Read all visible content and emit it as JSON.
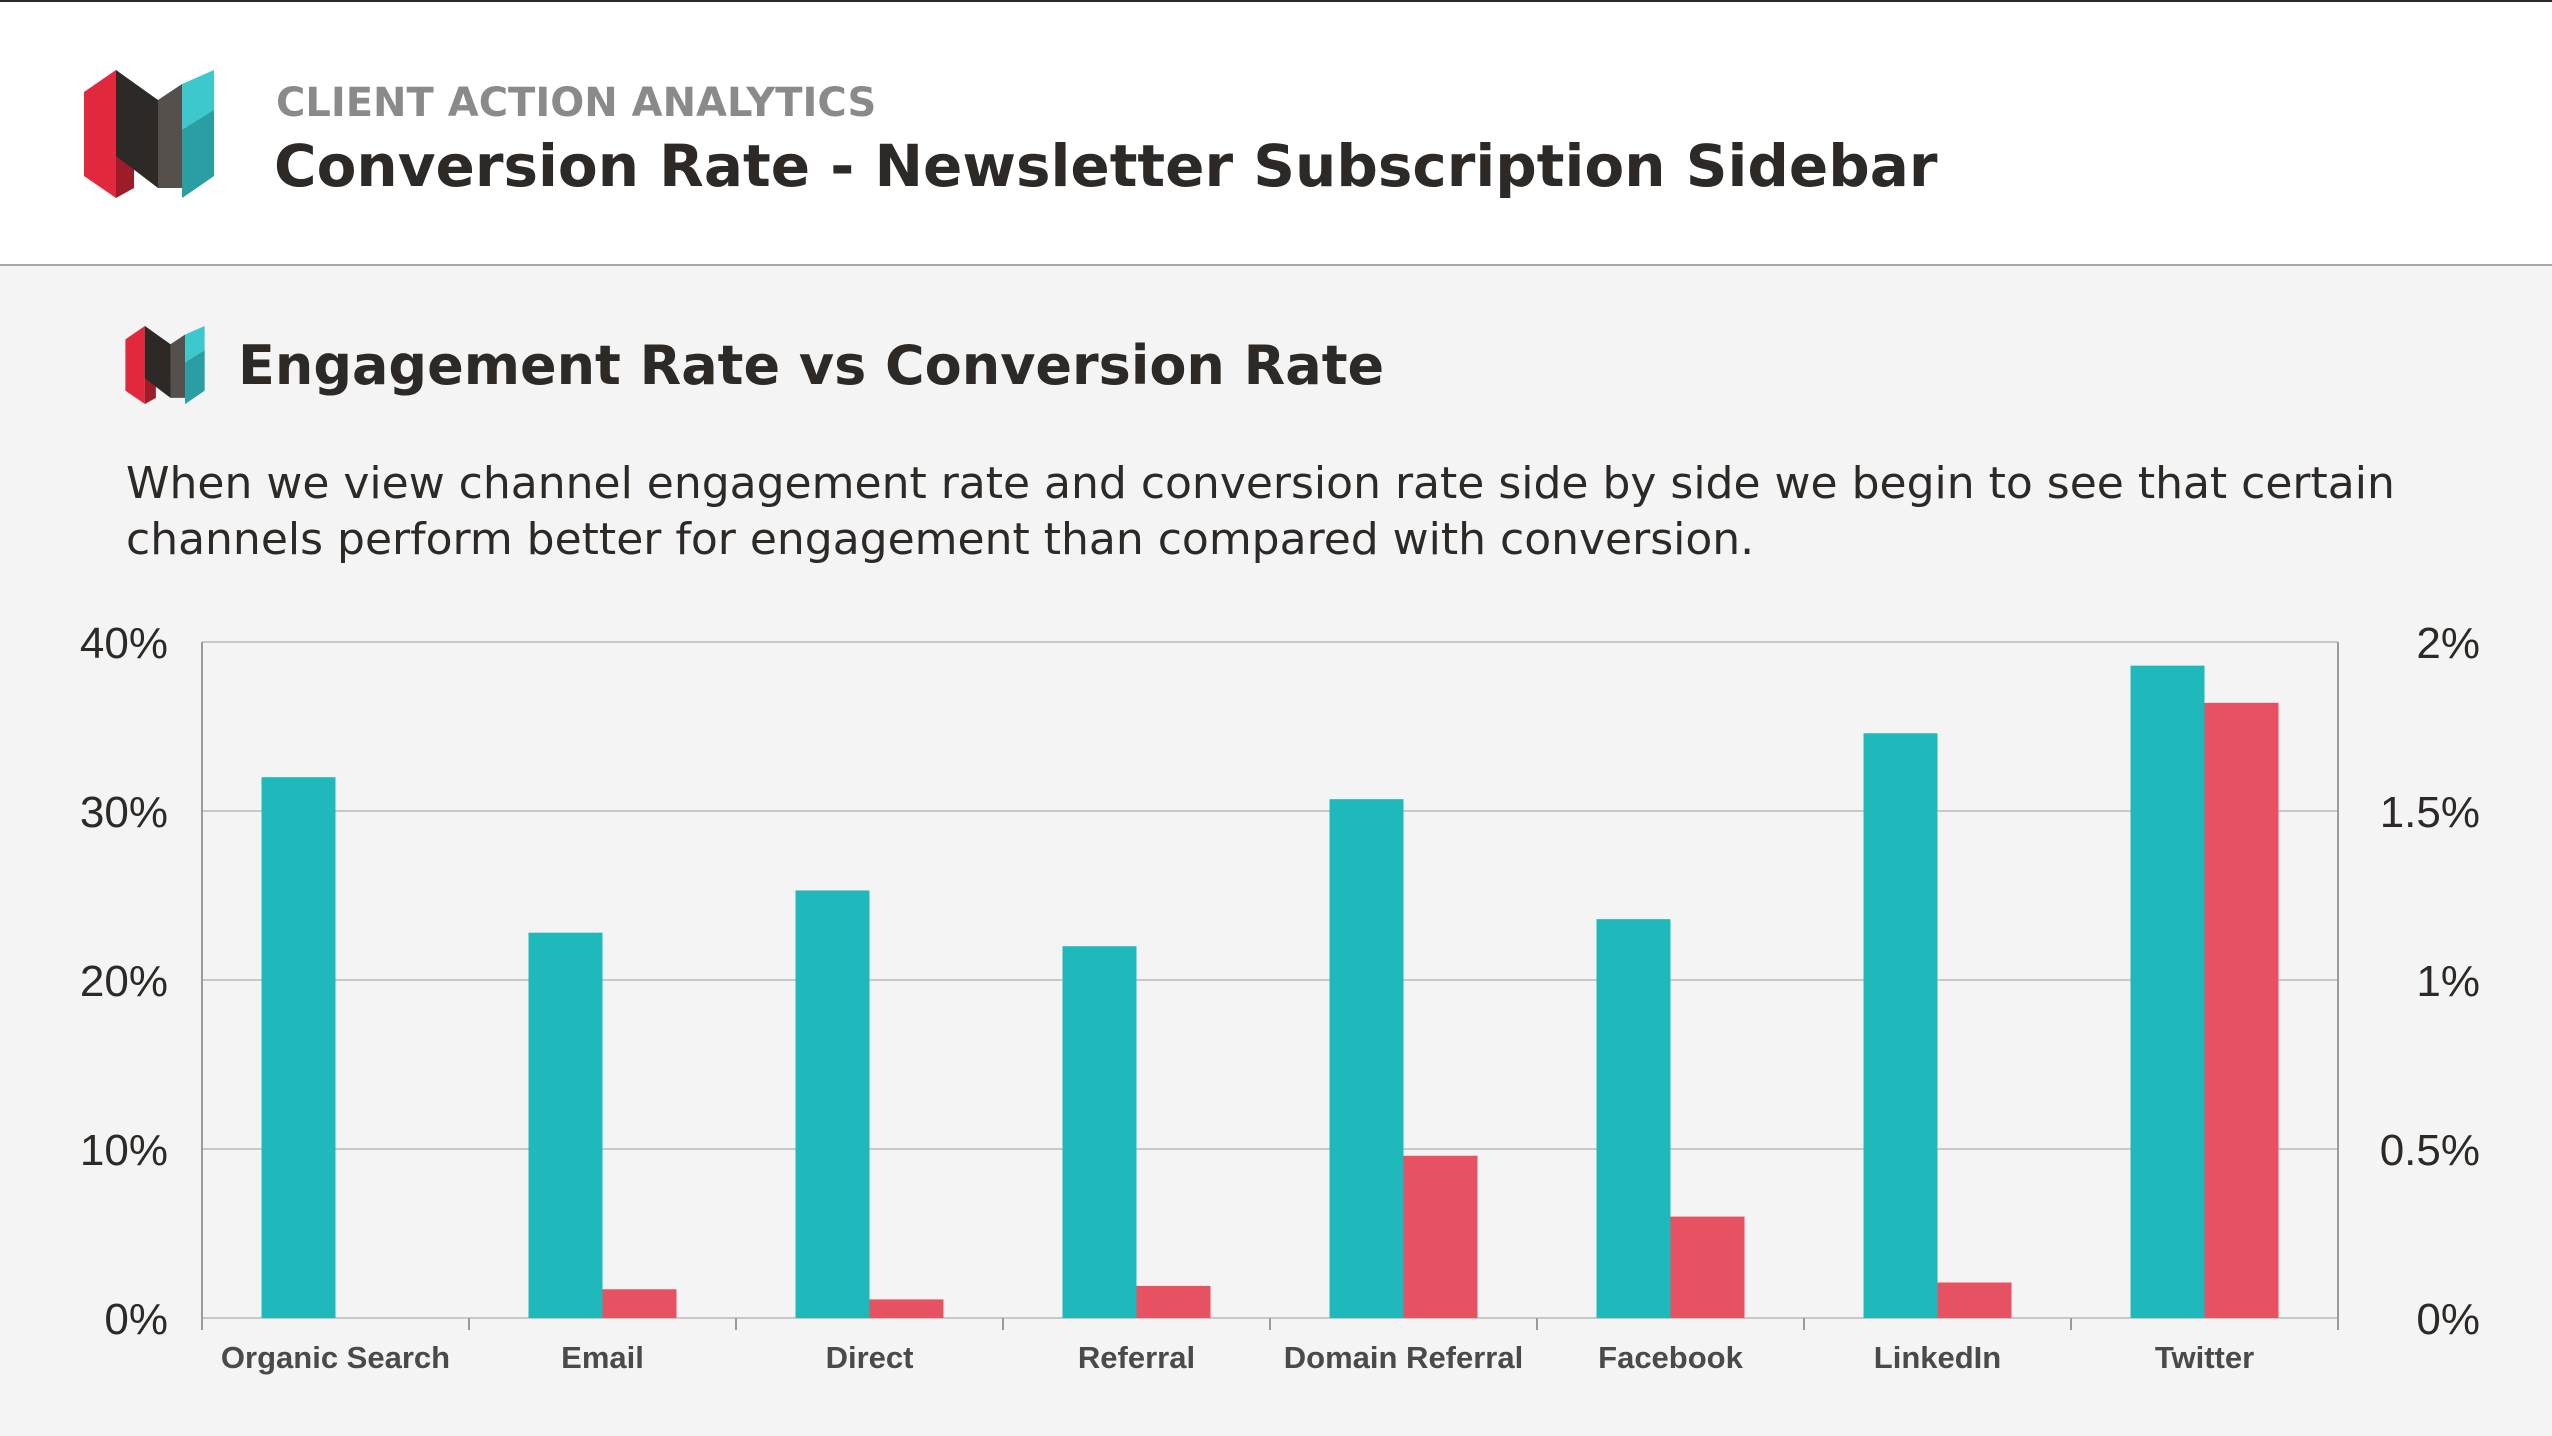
{
  "header": {
    "kicker": "CLIENT ACTION ANALYTICS",
    "title": "Conversion Rate - Newsletter Subscription Sidebar"
  },
  "section": {
    "title": "Engagement Rate vs Conversion Rate",
    "description": "When we view channel engagement rate and conversion rate side by side we begin to see that certain channels perform better for engagement than compared with conversion."
  },
  "colors": {
    "engagement": "#20b9bb",
    "conversion": "#e65262",
    "logo_red": "#e2283c",
    "logo_dark": "#2d2926",
    "logo_teal": "#3cc8cc",
    "grid": "#c8c8c8"
  },
  "chart_data": {
    "type": "bar",
    "categories": [
      "Organic Search",
      "Email",
      "Direct",
      "Referral",
      "Domain Referral",
      "Facebook",
      "LinkedIn",
      "Twitter"
    ],
    "series": [
      {
        "axis": "left",
        "values": [
          32.0,
          22.8,
          25.3,
          22.0,
          30.7,
          23.6,
          34.6,
          38.6
        ]
      },
      {
        "axis": "right",
        "values": [
          0.0,
          0.085,
          0.055,
          0.095,
          0.48,
          0.3,
          0.105,
          1.82
        ]
      }
    ],
    "left_axis": {
      "ylim": [
        0,
        40
      ],
      "ticks": [
        "0%",
        "10%",
        "20%",
        "30%",
        "40%"
      ]
    },
    "right_axis": {
      "ylim": [
        0,
        2
      ],
      "ticks": [
        "0%",
        "0.5%",
        "1%",
        "1.5%",
        "2%"
      ]
    },
    "grid": true,
    "legend": false
  }
}
